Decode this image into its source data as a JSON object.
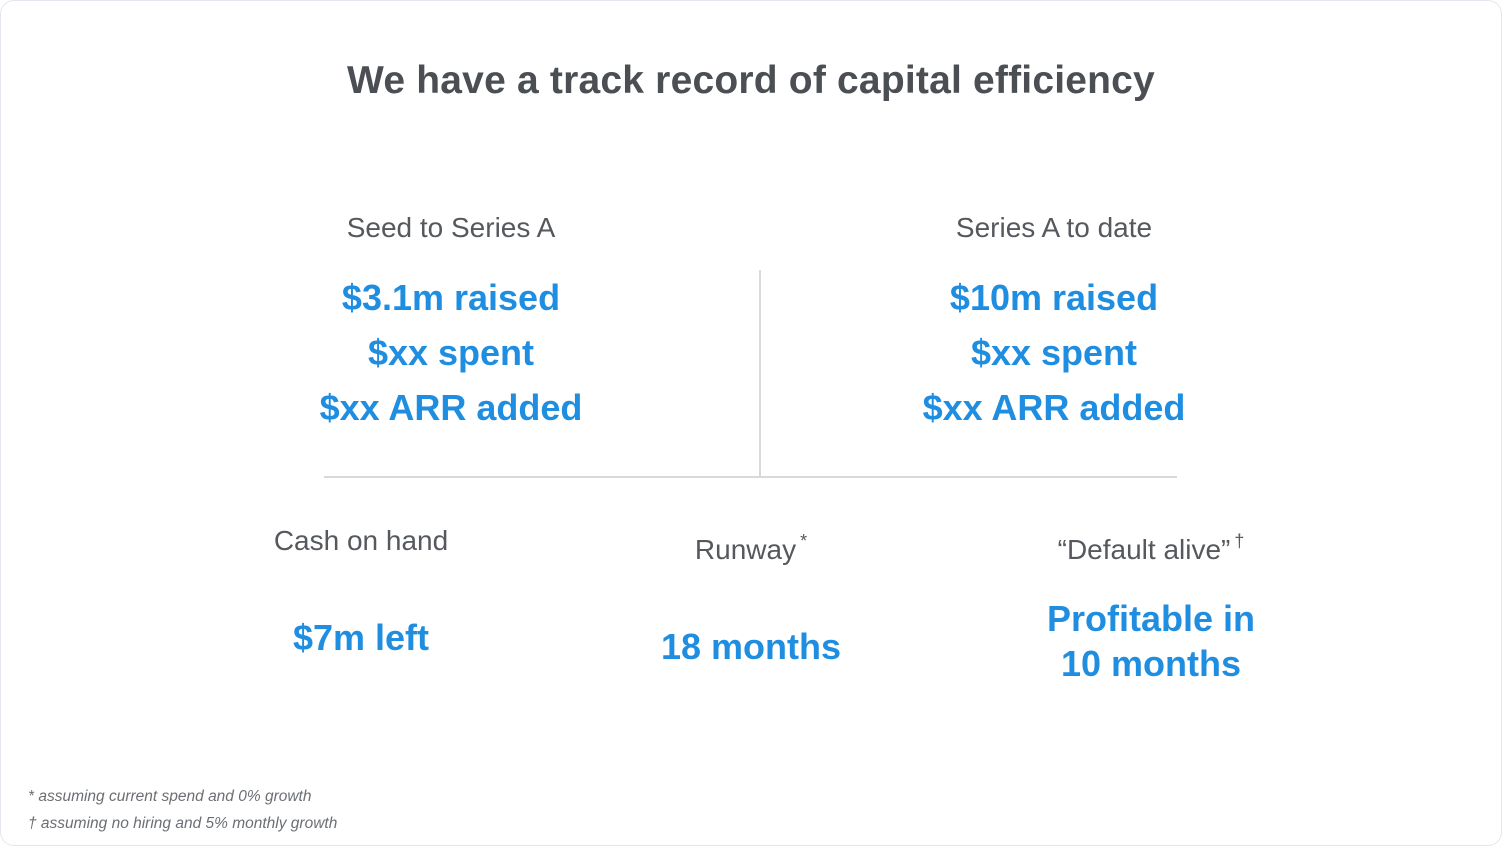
{
  "slide": {
    "title": "We have a track record of capital efficiency",
    "seed_to_series_a": {
      "label": "Seed to Series A",
      "raised": "$3.1m raised",
      "spent": "$xx spent",
      "arr": "$xx ARR added"
    },
    "series_a_to_date": {
      "label": "Series A to date",
      "raised": "$10m raised",
      "spent": "$xx spent",
      "arr": "$xx ARR added"
    },
    "cash_on_hand": {
      "label": "Cash on hand",
      "value": "$7m left"
    },
    "runway": {
      "label": "Runway",
      "marker": "*",
      "value": "18 months"
    },
    "default_alive": {
      "label": "“Default alive”",
      "marker": "†",
      "value_line1": "Profitable in",
      "value_line2": "10 months"
    },
    "footnotes": {
      "runway_note": "* assuming current spend and 0% growth",
      "default_alive_note": "† assuming no hiring and 5% monthly growth"
    },
    "colors": {
      "accent": "#1f8ee0",
      "title": "#4b4f54",
      "divider": "#d9d9d9"
    }
  }
}
